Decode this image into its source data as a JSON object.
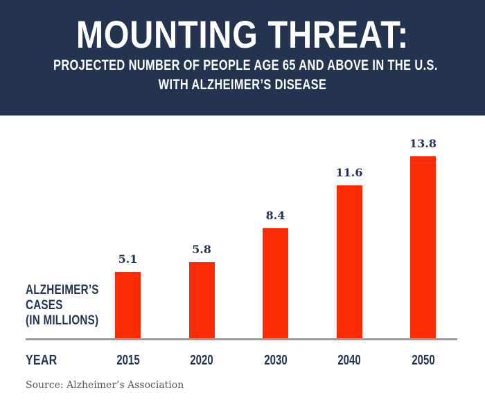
{
  "header": {
    "title": "MOUNTING THREAT:",
    "subtitle_line1": "PROJECTED NUMBER OF PEOPLE AGE 65 AND ABOVE IN THE U.S.",
    "subtitle_line2": "WITH ALZHEIMER’S DISEASE"
  },
  "chart": {
    "y_axis_label_lines": [
      "ALZHEIMER’S",
      "CASES",
      "(IN MILLIONS)"
    ],
    "x_axis_title": "YEAR"
  },
  "footer": {
    "source": "Source: Alzheimer’s Association"
  },
  "colors": {
    "header_navy": "#243450",
    "bar_red": "#fb2c04",
    "text_navy": "#243450",
    "axis_gray": "#9b9b9b",
    "source_gray": "#57585a",
    "background": "#ffffff"
  },
  "chart_data": {
    "type": "bar",
    "categories": [
      "2015",
      "2020",
      "2030",
      "2040",
      "2050"
    ],
    "values": [
      5.1,
      5.8,
      8.4,
      11.6,
      13.8
    ],
    "value_labels": [
      "5.1",
      "5.8",
      "8.4",
      "11.6",
      "13.8"
    ],
    "title": "MOUNTING THREAT: PROJECTED NUMBER OF PEOPLE AGE 65 AND ABOVE IN THE U.S. WITH ALZHEIMER’S DISEASE",
    "xlabel": "YEAR",
    "ylabel": "ALZHEIMER’S CASES (IN MILLIONS)",
    "ylim": [
      0,
      14
    ],
    "grid": false,
    "legend": "none",
    "bar_color": "#fb2c04"
  }
}
